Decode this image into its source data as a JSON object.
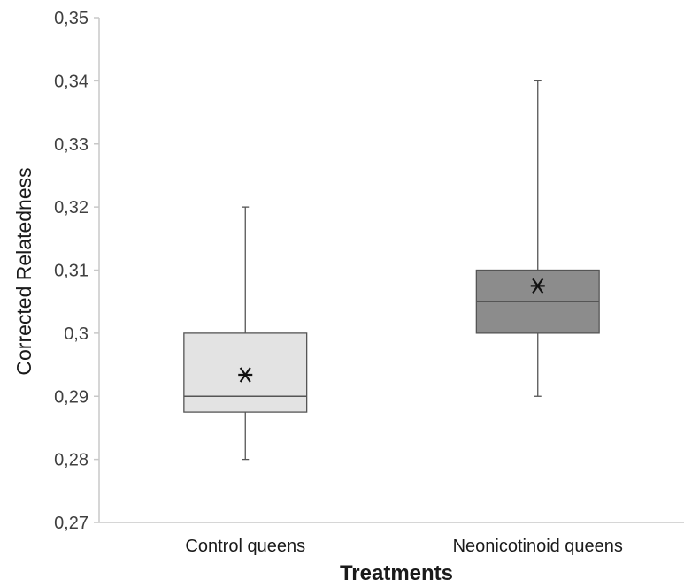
{
  "chart_data": {
    "type": "box",
    "title": "",
    "xlabel": "Treatments",
    "ylabel": "Corrected Relatedness",
    "ylim": [
      0.27,
      0.35
    ],
    "y_ticks": [
      0.27,
      0.28,
      0.29,
      0.3,
      0.31,
      0.32,
      0.33,
      0.34,
      0.35
    ],
    "y_tick_labels": [
      "0,27",
      "0,28",
      "0,29",
      "0,3",
      "0,31",
      "0,32",
      "0,33",
      "0,34",
      "0,35"
    ],
    "grid": false,
    "legend": "none",
    "categories": [
      "Control queens",
      "Neonicotinoid queens"
    ],
    "boxes": [
      {
        "category": "Control queens",
        "min": 0.28,
        "q1": 0.2875,
        "median": 0.29,
        "q3": 0.3,
        "max": 0.32,
        "mean": 0.2934,
        "color": "#e3e3e3"
      },
      {
        "category": "Neonicotinoid queens",
        "min": 0.29,
        "q1": 0.3,
        "median": 0.305,
        "q3": 0.31,
        "max": 0.34,
        "mean": 0.3075,
        "color": "#8c8c8c"
      }
    ]
  }
}
